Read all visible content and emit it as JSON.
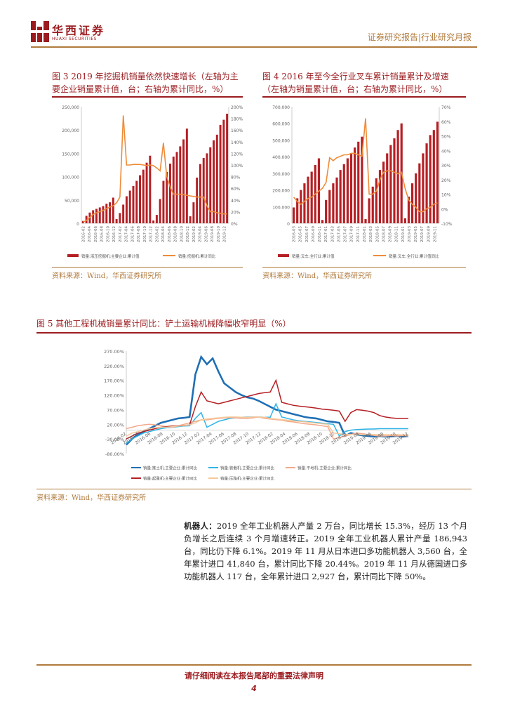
{
  "header": {
    "brand": "华西证券",
    "brand_en": "HUAXI SECURITIES",
    "report_type": "证券研究报告|行业研究月报"
  },
  "colors": {
    "red": "#b51f24",
    "orange": "#ee8c3a",
    "blue": "#1f6fb4",
    "lightblue": "#2eb5e8",
    "salmon": "#f3a98a",
    "darkred": "#b51f24",
    "peach": "#f6c89a"
  },
  "fig3": {
    "title_line1": "图 3   2019 年挖掘机销量依然快速增长（左轴为主",
    "title_line2": "要企业销量累计值，台；右轴为累计同比，%）",
    "legend_bar": "销量:液压挖掘机:主要企业:累计值",
    "legend_line": "销量:挖掘机:累计同比",
    "source": "资料来源：Wind，华西证券研究所"
  },
  "fig4": {
    "title_line1": "图 4   2016 年至今全行业叉车累计销量累计及增速",
    "title_line2": "（左轴为销量累计值，台；右轴为累计同比，%）",
    "legend_bar": "销量:叉车:全行业:累计值",
    "legend_line": "销量:叉车:全行业:累计值同比",
    "source": "资料来源：Wind，华西证券研究所"
  },
  "fig5": {
    "title": "图 5   其他工程机械销量累计同比：铲土运输机械降幅收窄明显（%）",
    "legend": [
      "销量:推土机:主要企业:累计同比",
      "销量:装载机:主要企业:累计同比",
      "销量:平地机:主要企业:累计同比",
      "销量:起重机:主要企业:累计同比",
      "销量:压路机:主要企业:累计同比"
    ],
    "source": "资料来源：Wind，华西证券研究所"
  },
  "chart_data": [
    {
      "type": "bar",
      "id": "fig3",
      "left_ticks": [
        "250,000",
        "200,000",
        "150,000",
        "100,000",
        "50,000",
        "0"
      ],
      "right_ticks": [
        "200%",
        "180%",
        "160%",
        "140%",
        "120%",
        "100%",
        "80%",
        "60%",
        "40%",
        "20%",
        "0%"
      ],
      "ylim": [
        0,
        250000
      ],
      "y2lim": [
        0,
        200
      ],
      "x_labels": [
        "2016-02",
        "2016-04",
        "2016-06",
        "2016-08",
        "2016-10",
        "2016-12",
        "2017-02",
        "2017-04",
        "2017-06",
        "2017-08",
        "2017-10",
        "2017-12",
        "2018-02",
        "2018-04",
        "2018-06",
        "2018-08",
        "2018-10",
        "2018-12",
        "2019-02",
        "2019-04",
        "2019-06",
        "2019-08",
        "2019-10",
        "2019-12"
      ],
      "series": [
        {
          "name": "销量:液压挖掘机:主要企业:累计值",
          "kind": "bar",
          "values": [
            5000,
            16000,
            23000,
            28000,
            31000,
            34000,
            37000,
            42000,
            45000,
            55000,
            9000,
            22000,
            40000,
            58000,
            70000,
            80000,
            91000,
            103000,
            115000,
            130000,
            145000,
            6000,
            18000,
            52000,
            91000,
            110000,
            128000,
            143000,
            153000,
            165000,
            180000,
            203000,
            15000,
            45000,
            98000,
            127000,
            140000,
            150000,
            163000,
            178000,
            190000,
            211000,
            222000,
            235000
          ]
        },
        {
          "name": "销量:挖掘机:累计同比",
          "kind": "line",
          "values": [
            2,
            5,
            10,
            15,
            18,
            20,
            22,
            25,
            28,
            30,
            35,
            45,
            185,
            100,
            100,
            101,
            101,
            101,
            100,
            99,
            100,
            99,
            95,
            90,
            138,
            80,
            62,
            50,
            50,
            50,
            49,
            48,
            47,
            46,
            45,
            45,
            45,
            30,
            20,
            20,
            18,
            17,
            16,
            16
          ]
        }
      ]
    },
    {
      "type": "bar",
      "id": "fig4",
      "left_ticks": [
        "700,000",
        "600,000",
        "500,000",
        "400,000",
        "300,000",
        "200,000",
        "100,000",
        "0"
      ],
      "right_ticks": [
        "70%",
        "60%",
        "50%",
        "40%",
        "30%",
        "20%",
        "10%",
        "0%",
        "-10%"
      ],
      "ylim": [
        0,
        700000
      ],
      "y2lim": [
        -10,
        70
      ],
      "x_labels": [
        "2016-03",
        "2016-05",
        "2016-07",
        "2016-09",
        "2016-11",
        "2017-01",
        "2017-03",
        "2017-05",
        "2017-07",
        "2017-09",
        "2017-11",
        "2018-01",
        "2018-03",
        "2018-05",
        "2018-07",
        "2018-09",
        "2018-11",
        "2019-01",
        "2019-03",
        "2019-05",
        "2019-07",
        "2019-09",
        "2019-11"
      ],
      "series": [
        {
          "name": "销量:叉车:全行业:累计值",
          "kind": "bar",
          "values": [
            95000,
            150000,
            200000,
            240000,
            280000,
            310000,
            350000,
            390000,
            20000,
            140000,
            200000,
            240000,
            275000,
            320000,
            355000,
            390000,
            420000,
            455000,
            490000,
            520000,
            25000,
            150000,
            220000,
            270000,
            320000,
            370000,
            420000,
            470000,
            510000,
            560000,
            600000,
            30000,
            160000,
            240000,
            300000,
            360000,
            420000,
            480000,
            530000,
            560000,
            610000
          ]
        },
        {
          "name": "销量:叉车:全行业:累计值同比",
          "kind": "line",
          "values": [
            8,
            5,
            3,
            5,
            7,
            8,
            10,
            12,
            14,
            18,
            35,
            33,
            35,
            36,
            37,
            37,
            38,
            38,
            37,
            36,
            62,
            10,
            10,
            12,
            20,
            25,
            26,
            26,
            25,
            24,
            25,
            14,
            6,
            3,
            1,
            -2,
            -2,
            0,
            1,
            3,
            4
          ]
        }
      ]
    },
    {
      "type": "line",
      "id": "fig5",
      "y_ticks": [
        "270.00%",
        "220.00%",
        "170.00%",
        "120.00%",
        "70.00%",
        "20.00%",
        "-30.00%",
        "-80.00%"
      ],
      "ylim": [
        -80,
        270
      ],
      "x_labels": [
        "2016-02",
        "2016-04",
        "2016-06",
        "2016-08",
        "2016-10",
        "2016-12",
        "2017-02",
        "2017-04",
        "2017-06",
        "2017-08",
        "2017-10",
        "2017-12",
        "2018-02",
        "2018-04",
        "2018-06",
        "2018-08",
        "2018-10",
        "2018-12",
        "2019-02",
        "2019-04",
        "2019-06",
        "2019-08",
        "2019-10",
        "2019-12"
      ],
      "series": [
        {
          "name": "销量:推土机:主要企业:累计同比",
          "color": "#1f6fb4",
          "values": [
            -50,
            -30,
            -15,
            -5,
            5,
            15,
            25,
            30,
            35,
            40,
            42,
            45,
            190,
            250,
            225,
            245,
            200,
            160,
            145,
            130,
            120,
            112,
            108,
            100,
            90,
            80,
            70,
            65,
            60,
            55,
            50,
            45,
            42,
            40,
            35,
            30,
            28,
            25,
            -20,
            -10,
            -15,
            -18,
            -20,
            -22,
            -20,
            -22,
            -21,
            -20,
            -22,
            -20
          ]
        },
        {
          "name": "销量:装载机:主要企业:累计同比",
          "color": "#2eb5e8",
          "values": [
            -45,
            -30,
            -20,
            -10,
            -5,
            0,
            5,
            8,
            10,
            12,
            14,
            15,
            40,
            60,
            10,
            20,
            30,
            35,
            40,
            42,
            44,
            45,
            45,
            45,
            44,
            44,
            90,
            45,
            40,
            35,
            32,
            30,
            28,
            26,
            24,
            22,
            20,
            -20,
            -5,
            0,
            2,
            3,
            4,
            4,
            5,
            5,
            5,
            5,
            5,
            5
          ]
        },
        {
          "name": "销量:平地机:主要企业:累计同比",
          "color": "#f3a98a",
          "values": [
            5,
            10,
            15,
            18,
            20,
            18,
            15,
            12,
            10,
            15,
            20,
            25,
            30,
            35,
            35,
            38,
            40,
            42,
            43,
            42,
            40,
            40,
            42,
            45,
            40,
            38,
            36,
            34,
            30,
            28,
            25,
            22,
            20,
            18,
            15,
            12,
            -30,
            -25,
            -20,
            -15,
            -10,
            -12,
            -15,
            -18,
            -20,
            -20,
            -18,
            -20,
            -18,
            -20
          ]
        },
        {
          "name": "销量:起重机:主要企业:累计同比",
          "color": "#b51f24",
          "values": [
            -30,
            -20,
            -10,
            -5,
            0,
            5,
            10,
            12,
            14,
            15,
            16,
            18,
            80,
            130,
            100,
            95,
            90,
            95,
            100,
            105,
            110,
            115,
            120,
            125,
            128,
            130,
            170,
            95,
            90,
            85,
            82,
            80,
            78,
            75,
            72,
            70,
            68,
            65,
            30,
            60,
            70,
            68,
            65,
            60,
            50,
            45,
            42,
            40,
            40,
            40
          ]
        },
        {
          "name": "销量:压路机:主要企业:累计同比",
          "color": "#f6c89a",
          "values": [
            -20,
            -10,
            -5,
            0,
            5,
            8,
            10,
            10,
            12,
            14,
            15,
            18,
            25,
            35,
            38,
            40,
            42,
            44,
            45,
            45,
            44,
            44,
            45,
            45,
            44,
            40,
            38,
            36,
            34,
            32,
            30,
            28,
            26,
            24,
            22,
            20,
            -10,
            -12,
            -15,
            -14,
            -15,
            -16,
            -14,
            -15,
            -16,
            -15,
            -16,
            -15,
            -16,
            -15
          ]
        }
      ]
    }
  ],
  "body": {
    "lead": "机器人：",
    "text": "2019 全年工业机器人产量 2 万台，同比增长 15.3%，经历 13 个月负增长之后连续 3 个月增速转正。2019 全年工业机器人累计产量 186,943 台，同比仍下降 6.1%。2019 年 11 月从日本进口多功能机器人 3,560 台，全年累计进口 41,840 台，累计同比下降 20.44%。2019 年 11 月从德国进口多功能机器人 117 台，全年累计进口 2,927 台，累计同比下降 50%。"
  },
  "footer": {
    "notice": "请仔细阅读在本报告尾部的重要法律声明",
    "page": "4"
  }
}
